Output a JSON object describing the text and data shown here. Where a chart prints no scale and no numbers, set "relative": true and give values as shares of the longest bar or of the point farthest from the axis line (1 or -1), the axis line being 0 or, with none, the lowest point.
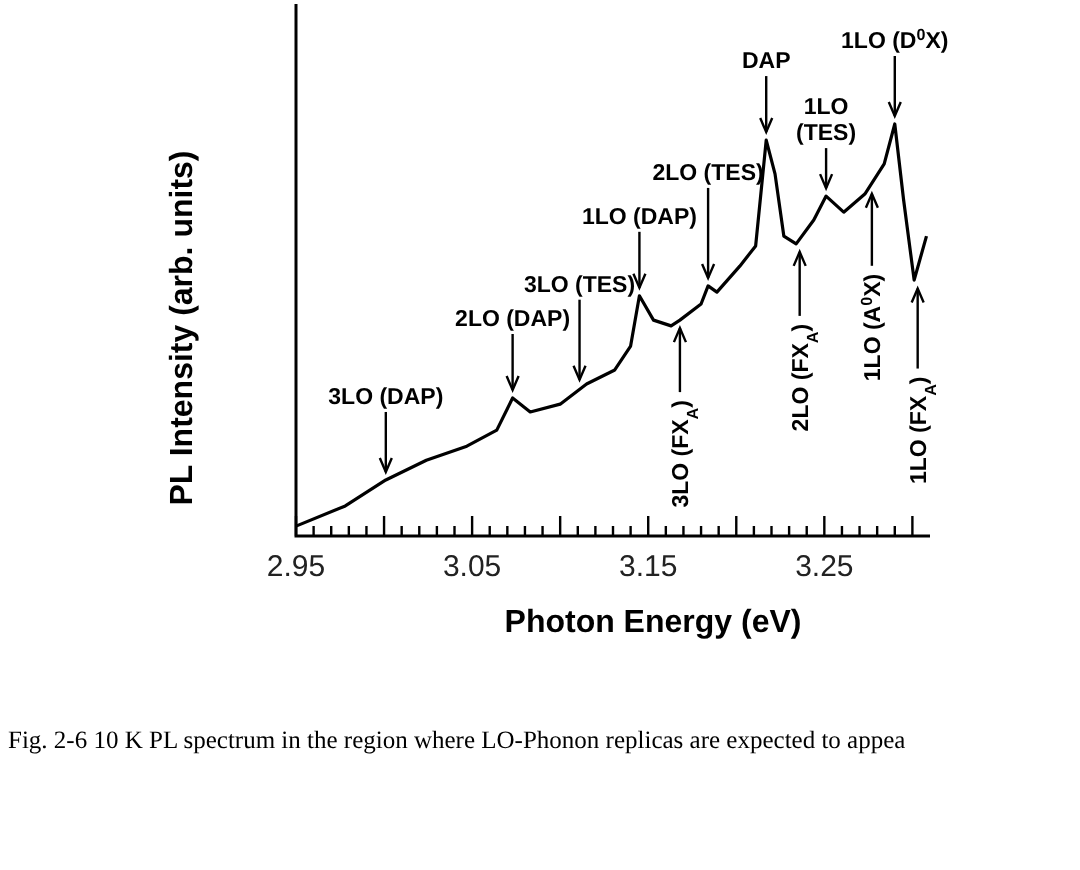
{
  "chart_data": {
    "type": "line",
    "relative": true,
    "xlabel": "Photon Energy (eV)",
    "ylabel": "PL Intensity (arb. units)",
    "x": [
      2.95,
      2.978,
      3.001,
      3.024,
      3.047,
      3.064,
      3.073,
      3.083,
      3.1,
      3.115,
      3.131,
      3.14,
      3.145,
      3.153,
      3.163,
      3.168,
      3.18,
      3.184,
      3.189,
      3.202,
      3.211,
      3.217,
      3.222,
      3.227,
      3.234,
      3.244,
      3.251,
      3.261,
      3.273,
      3.284,
      3.29,
      3.295,
      3.301,
      3.308
    ],
    "series": [
      {
        "color": "#000000",
        "values": [
          0.024,
          0.073,
          0.136,
          0.184,
          0.218,
          0.257,
          0.335,
          0.301,
          0.32,
          0.369,
          0.403,
          0.461,
          0.583,
          0.524,
          0.51,
          0.524,
          0.563,
          0.607,
          0.592,
          0.655,
          0.704,
          0.961,
          0.879,
          0.728,
          0.709,
          0.767,
          0.825,
          0.786,
          0.83,
          0.903,
          1.0,
          0.816,
          0.621,
          0.728
        ]
      }
    ],
    "xlim": [
      2.95,
      3.31
    ],
    "xticks": [
      2.95,
      {
        "value": 2.96,
        "label": null
      },
      {
        "value": 2.97,
        "label": null
      },
      {
        "value": 2.98,
        "label": null
      },
      {
        "value": 2.99,
        "label": null
      },
      {
        "value": 3.0,
        "label": null
      },
      {
        "value": 3.01,
        "label": null
      },
      {
        "value": 3.02,
        "label": null
      },
      {
        "value": 3.03,
        "label": null
      },
      {
        "value": 3.04,
        "label": null
      },
      3.05,
      {
        "value": 3.06,
        "label": null
      },
      {
        "value": 3.07,
        "label": null
      },
      {
        "value": 3.08,
        "label": null
      },
      {
        "value": 3.09,
        "label": null
      },
      {
        "value": 3.1,
        "label": null
      },
      {
        "value": 3.11,
        "label": null
      },
      {
        "value": 3.12,
        "label": null
      },
      {
        "value": 3.13,
        "label": null
      },
      {
        "value": 3.14,
        "label": null
      },
      3.15,
      {
        "value": 3.16,
        "label": null
      },
      {
        "value": 3.17,
        "label": null
      },
      {
        "value": 3.18,
        "label": null
      },
      {
        "value": 3.19,
        "label": null
      },
      {
        "value": 3.2,
        "label": null
      },
      {
        "value": 3.21,
        "label": null
      },
      {
        "value": 3.22,
        "label": null
      },
      {
        "value": 3.23,
        "label": null
      },
      {
        "value": 3.24,
        "label": null
      },
      3.25,
      {
        "value": 3.26,
        "label": null
      },
      {
        "value": 3.27,
        "label": null
      },
      {
        "value": 3.28,
        "label": null
      },
      {
        "value": 3.29,
        "label": null
      },
      {
        "value": 3.3,
        "label": null
      }
    ],
    "annotations": [
      {
        "text": "3LO (DAP)",
        "x": 3.001,
        "y": 0.136
      },
      {
        "text": "2LO (DAP)",
        "x": 3.073,
        "y": 0.335
      },
      {
        "text": "3LO (TES)",
        "x": 3.111,
        "y": 0.36
      },
      {
        "text": "1LO (DAP)",
        "x": 3.145,
        "y": 0.583
      },
      {
        "text": "2LO (TES)",
        "x": 3.184,
        "y": 0.607
      },
      {
        "text": "DAP",
        "x": 3.217,
        "y": 0.961
      },
      {
        "text": "1LO\n(TES)",
        "x": 3.251,
        "y": 0.825
      },
      {
        "text": "1LO (D$^{0}$X)",
        "x": 3.29,
        "y": 1.0
      },
      {
        "text": "3LO (FX$_{A}$)",
        "x": 3.168,
        "y": 0.524
      },
      {
        "text": "2LO (FX$_{A}$)",
        "x": 3.236,
        "y": 0.709
      },
      {
        "text": "1LO (A$^{0}$X)",
        "x": 3.277,
        "y": 0.85
      },
      {
        "text": "1LO (FX$_{A}$)",
        "x": 3.303,
        "y": 0.62
      },
      "Fig. 2-6 10 K PL spectrum in the region where LO-Phonon replicas are expected to appea"
    ]
  }
}
